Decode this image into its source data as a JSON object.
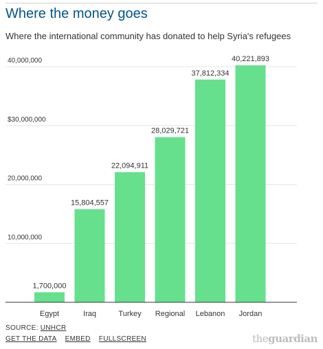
{
  "header": {
    "title": "Where the money goes",
    "subtitle": "Where the international community has donated to help Syria's refugees"
  },
  "chart_data": {
    "type": "bar",
    "categories": [
      "Egypt",
      "Iraq",
      "Turkey",
      "Regional",
      "Lebanon",
      "Jordan"
    ],
    "values": [
      1700000,
      15804557,
      22094911,
      28029721,
      37812334,
      40221893
    ],
    "data_labels": [
      "1,700,000",
      "15,804,557",
      "22,094,911",
      "28,029,721",
      "37,812,334",
      "40,221,893"
    ],
    "title": "Where the money goes",
    "xlabel": "",
    "ylabel": "",
    "ylim": [
      0,
      40000000
    ],
    "yticks": [
      10000000,
      20000000,
      30000000,
      40000000
    ],
    "ytick_labels": [
      "10,000,000",
      "20,000,000",
      "$30,000,000",
      "40,000,000"
    ],
    "grid": true,
    "colors": {
      "bar": "#66e08c",
      "grid": "#e6e6e6",
      "axis": "#333333",
      "text": "#333333"
    }
  },
  "footer": {
    "source_prefix": "SOURCE: ",
    "source_link": "UNHCR",
    "links": [
      "GET THE DATA",
      "EMBED",
      "FULLSCREEN"
    ],
    "logo_the": "the",
    "logo_brand": "guardian"
  }
}
